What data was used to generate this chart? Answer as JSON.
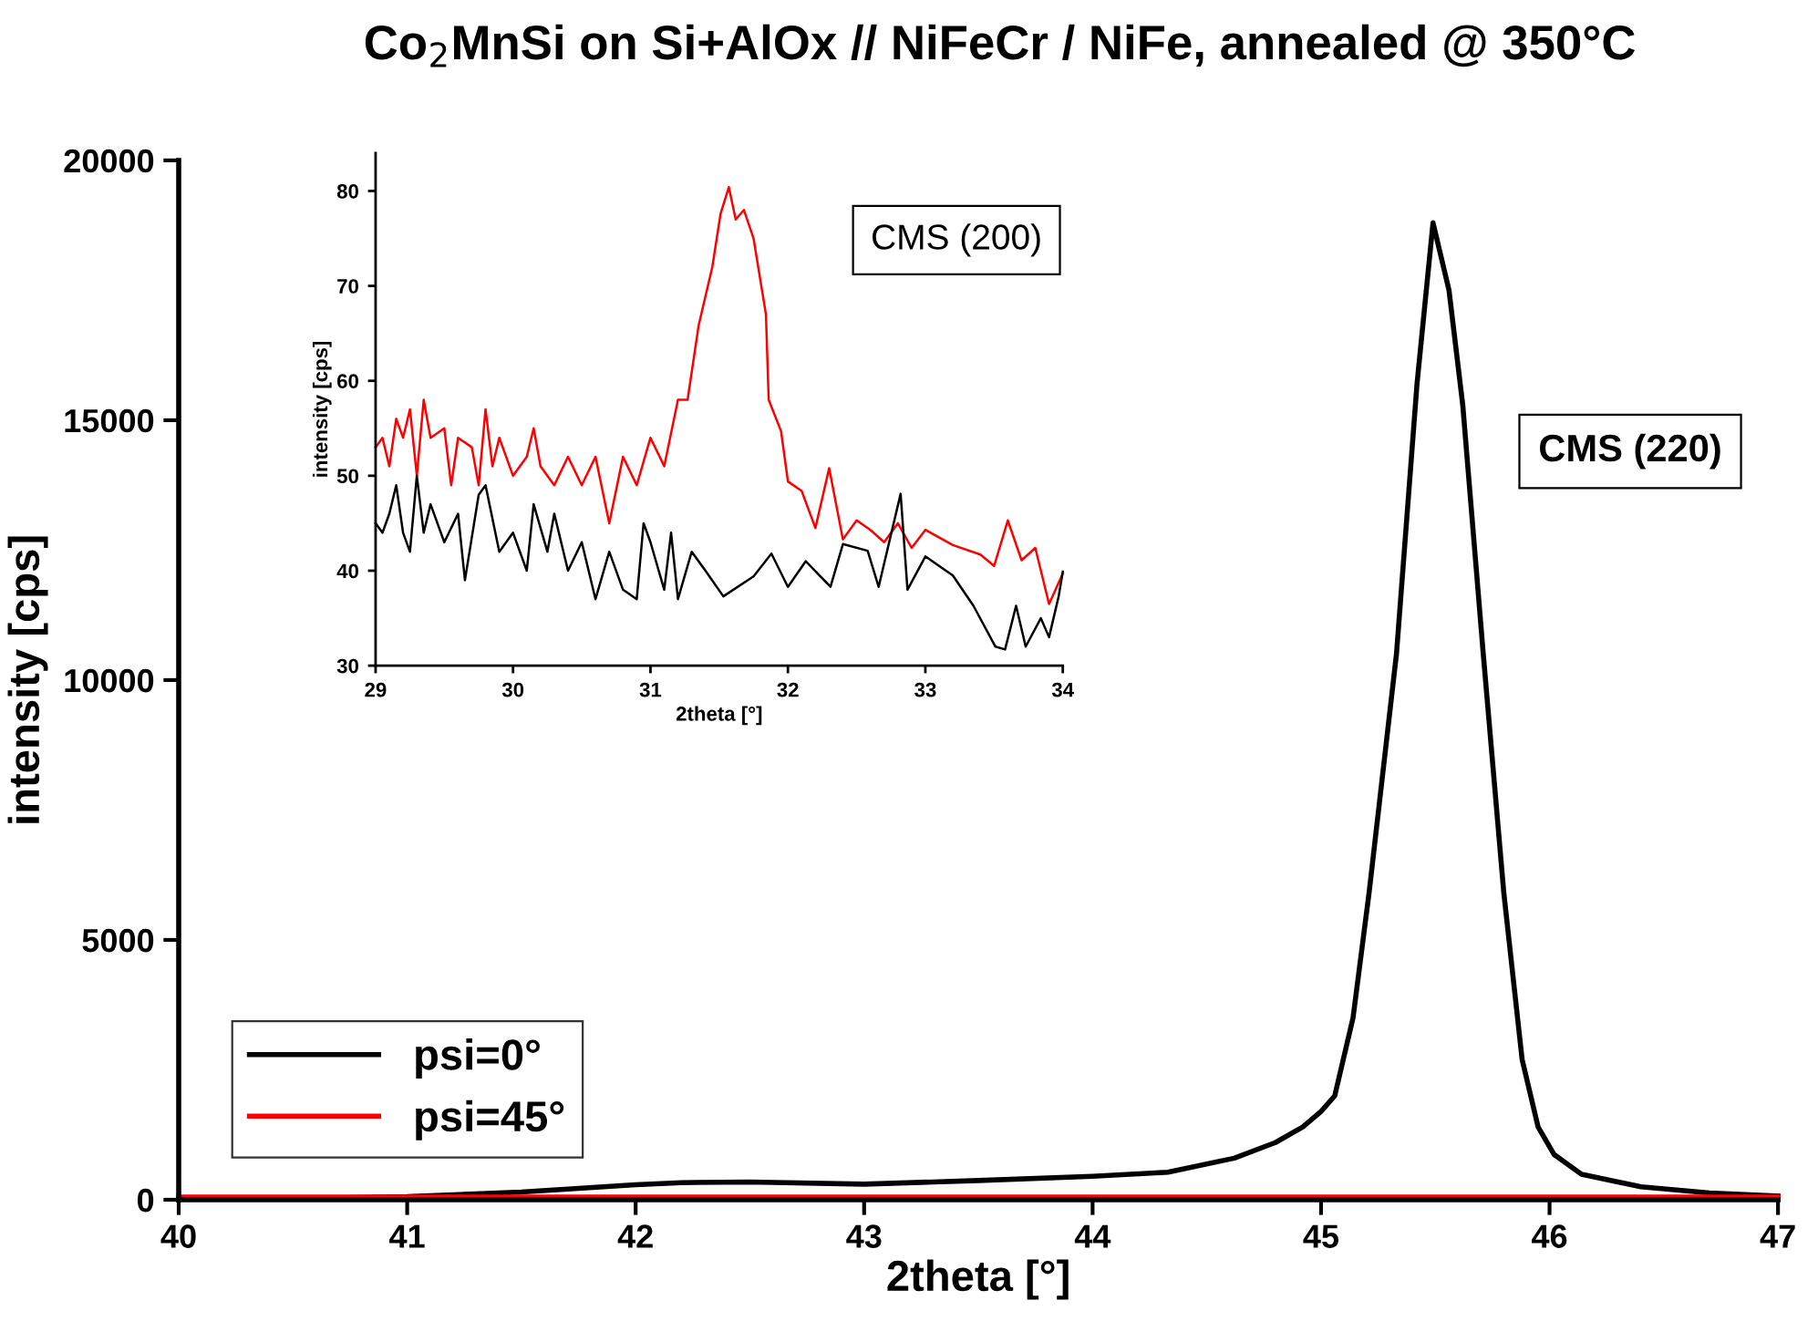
{
  "chart_data": [
    {
      "type": "line",
      "title": "Co$_{2}$MnSi on Si+AlOx // NiFeCr / NiFe, annealed @ 350°C",
      "xlabel": "2theta [°]",
      "ylabel": "intensity [cps]",
      "xlim": [
        40,
        47
      ],
      "ylim": [
        0,
        20000
      ],
      "xticks": [
        40,
        41,
        42,
        43,
        44,
        45,
        46,
        47
      ],
      "yticks": [
        0,
        5000,
        10000,
        15000,
        20000
      ],
      "legend": "bottom left",
      "grid": false,
      "annotations": [
        "CMS (220)"
      ],
      "series": [
        {
          "name": "psi=0°",
          "color": "#000000",
          "x": [
            40.0,
            40.5,
            41.0,
            41.5,
            42.0,
            42.2,
            42.5,
            43.0,
            43.5,
            44.0,
            44.33,
            44.62,
            44.8,
            44.92,
            45.0,
            45.06,
            45.14,
            45.21,
            45.33,
            45.42,
            45.49,
            45.56,
            45.62,
            45.71,
            45.8,
            45.88,
            45.95,
            46.02,
            46.14,
            46.4,
            46.7,
            47.0
          ],
          "values": [
            30,
            20,
            60,
            150,
            290,
            330,
            340,
            300,
            370,
            450,
            530,
            800,
            1100,
            1400,
            1700,
            2000,
            3500,
            5900,
            10500,
            15700,
            18800,
            17500,
            15300,
            10500,
            5900,
            2700,
            1400,
            870,
            490,
            250,
            130,
            70
          ]
        },
        {
          "name": "psi=45°",
          "color": "#ff0000",
          "x": [
            40.0,
            41.0,
            42.0,
            43.0,
            44.0,
            45.0,
            46.0,
            47.0
          ],
          "values": [
            50,
            50,
            50,
            50,
            50,
            50,
            50,
            50
          ]
        }
      ]
    },
    {
      "type": "line",
      "xlabel": "2theta [°]",
      "ylabel": "intensity [cps]",
      "xlim": [
        29,
        34
      ],
      "ylim": [
        30,
        84
      ],
      "xticks": [
        29,
        30,
        31,
        32,
        33,
        34
      ],
      "yticks": [
        30,
        40,
        50,
        60,
        70,
        80
      ],
      "grid": false,
      "annotations": [
        "CMS (200)"
      ],
      "series": [
        {
          "color": "#ff0000",
          "x": [
            29.0,
            29.05,
            29.1,
            29.15,
            29.2,
            29.25,
            29.3,
            29.35,
            29.4,
            29.5,
            29.55,
            29.6,
            29.7,
            29.75,
            29.8,
            29.85,
            29.9,
            30.0,
            30.1,
            30.15,
            30.2,
            30.3,
            30.4,
            30.5,
            30.6,
            30.7,
            30.8,
            30.9,
            31.0,
            31.1,
            31.2,
            31.27,
            31.35,
            31.45,
            31.51,
            31.57,
            31.62,
            31.68,
            31.75,
            31.84,
            31.86,
            31.95,
            32.0,
            32.1,
            32.2,
            32.3,
            32.4,
            32.5,
            32.6,
            32.7,
            32.8,
            32.9,
            33.0,
            33.2,
            33.4,
            33.5,
            33.6,
            33.7,
            33.8,
            33.9,
            34.0
          ],
          "values": [
            53,
            54,
            51,
            56,
            54,
            57,
            50,
            58,
            54,
            55,
            49,
            54,
            53,
            49,
            57,
            51,
            54,
            50,
            52,
            55,
            51,
            49,
            52,
            49,
            52,
            45,
            52,
            49,
            54,
            51,
            58,
            58,
            65.8,
            72,
            77.6,
            80.4,
            77,
            78,
            75,
            67,
            58,
            54.7,
            49.4,
            48.4,
            44.5,
            50.8,
            43.3,
            45.3,
            44.3,
            43,
            45,
            42.4,
            44.3,
            42.7,
            41.7,
            40.5,
            45.3,
            41.1,
            42.4,
            36.5,
            39.7
          ]
        },
        {
          "color": "#000000",
          "x": [
            29.0,
            29.05,
            29.1,
            29.15,
            29.2,
            29.25,
            29.3,
            29.35,
            29.4,
            29.5,
            29.6,
            29.65,
            29.75,
            29.8,
            29.9,
            30.0,
            30.1,
            30.15,
            30.25,
            30.3,
            30.4,
            30.5,
            30.6,
            30.7,
            30.8,
            30.9,
            30.95,
            31.0,
            31.1,
            31.15,
            31.2,
            31.3,
            31.4,
            31.53,
            31.75,
            31.88,
            32.0,
            32.13,
            32.31,
            32.4,
            32.58,
            32.66,
            32.82,
            32.87,
            33.0,
            33.2,
            33.35,
            33.51,
            33.58,
            33.66,
            33.73,
            33.84,
            33.9,
            33.97,
            34.0
          ],
          "values": [
            45,
            44,
            46,
            49,
            44,
            42,
            50,
            44,
            47,
            43,
            46,
            39,
            48,
            49,
            42,
            44,
            40,
            47,
            42,
            46,
            40,
            43,
            37,
            42,
            38,
            37,
            45,
            43,
            38,
            44,
            37,
            42,
            40,
            37.3,
            39.4,
            41.8,
            38.3,
            41,
            38.3,
            42.8,
            42.1,
            38.3,
            48.1,
            38,
            41.5,
            39.5,
            36.3,
            32,
            31.7,
            36.3,
            32,
            35,
            33,
            37.3,
            39.9
          ]
        }
      ]
    }
  ]
}
